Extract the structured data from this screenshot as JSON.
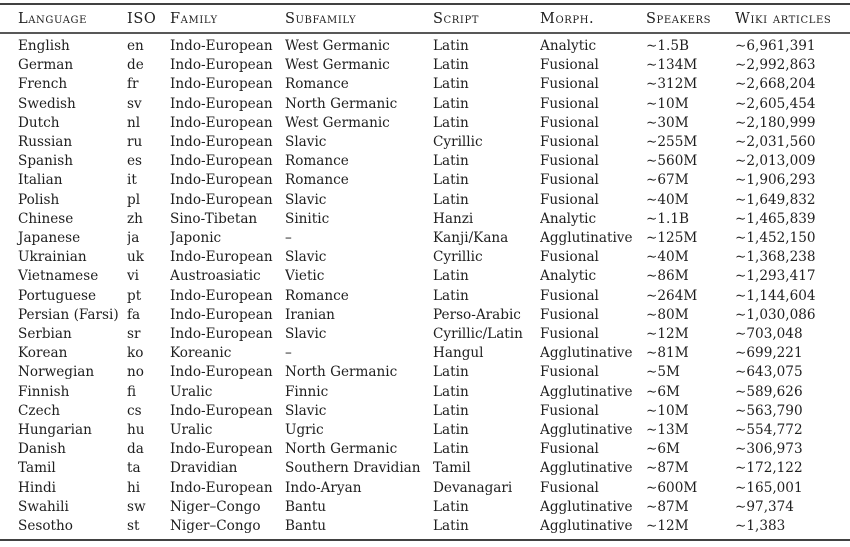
{
  "table": {
    "columns": [
      {
        "key": "language",
        "label": "Language"
      },
      {
        "key": "iso",
        "label": "ISO"
      },
      {
        "key": "family",
        "label": "Family"
      },
      {
        "key": "subfamily",
        "label": "Subfamily"
      },
      {
        "key": "script",
        "label": "Script"
      },
      {
        "key": "morph",
        "label": "Morph."
      },
      {
        "key": "speakers",
        "label": "Speakers"
      },
      {
        "key": "wiki",
        "label": "Wiki articles"
      }
    ],
    "rows": [
      {
        "language": "English",
        "iso": "en",
        "family": "Indo-European",
        "subfamily": "West Germanic",
        "script": "Latin",
        "morph": "Analytic",
        "speakers": "∼1.5B",
        "wiki": "∼6,961,391"
      },
      {
        "language": "German",
        "iso": "de",
        "family": "Indo-European",
        "subfamily": "West Germanic",
        "script": "Latin",
        "morph": "Fusional",
        "speakers": "∼134M",
        "wiki": "∼2,992,863"
      },
      {
        "language": "French",
        "iso": "fr",
        "family": "Indo-European",
        "subfamily": "Romance",
        "script": "Latin",
        "morph": "Fusional",
        "speakers": "∼312M",
        "wiki": "∼2,668,204"
      },
      {
        "language": "Swedish",
        "iso": "sv",
        "family": "Indo-European",
        "subfamily": "North Germanic",
        "script": "Latin",
        "morph": "Fusional",
        "speakers": "∼10M",
        "wiki": "∼2,605,454"
      },
      {
        "language": "Dutch",
        "iso": "nl",
        "family": "Indo-European",
        "subfamily": "West Germanic",
        "script": "Latin",
        "morph": "Fusional",
        "speakers": "∼30M",
        "wiki": "∼2,180,999"
      },
      {
        "language": "Russian",
        "iso": "ru",
        "family": "Indo-European",
        "subfamily": "Slavic",
        "script": "Cyrillic",
        "morph": "Fusional",
        "speakers": "∼255M",
        "wiki": "∼2,031,560"
      },
      {
        "language": "Spanish",
        "iso": "es",
        "family": "Indo-European",
        "subfamily": "Romance",
        "script": "Latin",
        "morph": "Fusional",
        "speakers": "∼560M",
        "wiki": "∼2,013,009"
      },
      {
        "language": "Italian",
        "iso": "it",
        "family": "Indo-European",
        "subfamily": "Romance",
        "script": "Latin",
        "morph": "Fusional",
        "speakers": "∼67M",
        "wiki": "∼1,906,293"
      },
      {
        "language": "Polish",
        "iso": "pl",
        "family": "Indo-European",
        "subfamily": "Slavic",
        "script": "Latin",
        "morph": "Fusional",
        "speakers": "∼40M",
        "wiki": "∼1,649,832"
      },
      {
        "language": "Chinese",
        "iso": "zh",
        "family": "Sino-Tibetan",
        "subfamily": "Sinitic",
        "script": "Hanzi",
        "morph": "Analytic",
        "speakers": "∼1.1B",
        "wiki": "∼1,465,839"
      },
      {
        "language": "Japanese",
        "iso": "ja",
        "family": "Japonic",
        "subfamily": "–",
        "script": "Kanji/Kana",
        "morph": "Agglutinative",
        "speakers": "∼125M",
        "wiki": "∼1,452,150"
      },
      {
        "language": "Ukrainian",
        "iso": "uk",
        "family": "Indo-European",
        "subfamily": "Slavic",
        "script": "Cyrillic",
        "morph": "Fusional",
        "speakers": "∼40M",
        "wiki": "∼1,368,238"
      },
      {
        "language": "Vietnamese",
        "iso": "vi",
        "family": "Austroasiatic",
        "subfamily": "Vietic",
        "script": "Latin",
        "morph": "Analytic",
        "speakers": "∼86M",
        "wiki": "∼1,293,417"
      },
      {
        "language": "Portuguese",
        "iso": "pt",
        "family": "Indo-European",
        "subfamily": "Romance",
        "script": "Latin",
        "morph": "Fusional",
        "speakers": "∼264M",
        "wiki": "∼1,144,604"
      },
      {
        "language": "Persian (Farsi)",
        "iso": "fa",
        "family": "Indo-European",
        "subfamily": "Iranian",
        "script": "Perso-Arabic",
        "morph": "Fusional",
        "speakers": "∼80M",
        "wiki": "∼1,030,086"
      },
      {
        "language": "Serbian",
        "iso": "sr",
        "family": "Indo-European",
        "subfamily": "Slavic",
        "script": "Cyrillic/Latin",
        "morph": "Fusional",
        "speakers": "∼12M",
        "wiki": "∼703,048"
      },
      {
        "language": "Korean",
        "iso": "ko",
        "family": "Koreanic",
        "subfamily": "–",
        "script": "Hangul",
        "morph": "Agglutinative",
        "speakers": "∼81M",
        "wiki": "∼699,221"
      },
      {
        "language": "Norwegian",
        "iso": "no",
        "family": "Indo-European",
        "subfamily": "North Germanic",
        "script": "Latin",
        "morph": "Fusional",
        "speakers": "∼5M",
        "wiki": "∼643,075"
      },
      {
        "language": "Finnish",
        "iso": "fi",
        "family": "Uralic",
        "subfamily": "Finnic",
        "script": "Latin",
        "morph": "Agglutinative",
        "speakers": "∼6M",
        "wiki": "∼589,626"
      },
      {
        "language": "Czech",
        "iso": "cs",
        "family": "Indo-European",
        "subfamily": "Slavic",
        "script": "Latin",
        "morph": "Fusional",
        "speakers": "∼10M",
        "wiki": "∼563,790"
      },
      {
        "language": "Hungarian",
        "iso": "hu",
        "family": "Uralic",
        "subfamily": "Ugric",
        "script": "Latin",
        "morph": "Agglutinative",
        "speakers": "∼13M",
        "wiki": "∼554,772"
      },
      {
        "language": "Danish",
        "iso": "da",
        "family": "Indo-European",
        "subfamily": "North Germanic",
        "script": "Latin",
        "morph": "Fusional",
        "speakers": "∼6M",
        "wiki": "∼306,973"
      },
      {
        "language": "Tamil",
        "iso": "ta",
        "family": "Dravidian",
        "subfamily": "Southern Dravidian",
        "script": "Tamil",
        "morph": "Agglutinative",
        "speakers": "∼87M",
        "wiki": "∼172,122"
      },
      {
        "language": "Hindi",
        "iso": "hi",
        "family": "Indo-European",
        "subfamily": "Indo-Aryan",
        "script": "Devanagari",
        "morph": "Fusional",
        "speakers": "∼600M",
        "wiki": "∼165,001"
      },
      {
        "language": "Swahili",
        "iso": "sw",
        "family": "Niger–Congo",
        "subfamily": "Bantu",
        "script": "Latin",
        "morph": "Agglutinative",
        "speakers": "∼87M",
        "wiki": "∼97,374"
      },
      {
        "language": "Sesotho",
        "iso": "st",
        "family": "Niger–Congo",
        "subfamily": "Bantu",
        "script": "Latin",
        "morph": "Agglutinative",
        "speakers": "∼12M",
        "wiki": "∼1,383"
      }
    ]
  },
  "colors": {
    "text": "#1e1e1e",
    "rule_heavy": "#414141",
    "rule_light": "#585858",
    "background": "#ffffff"
  }
}
